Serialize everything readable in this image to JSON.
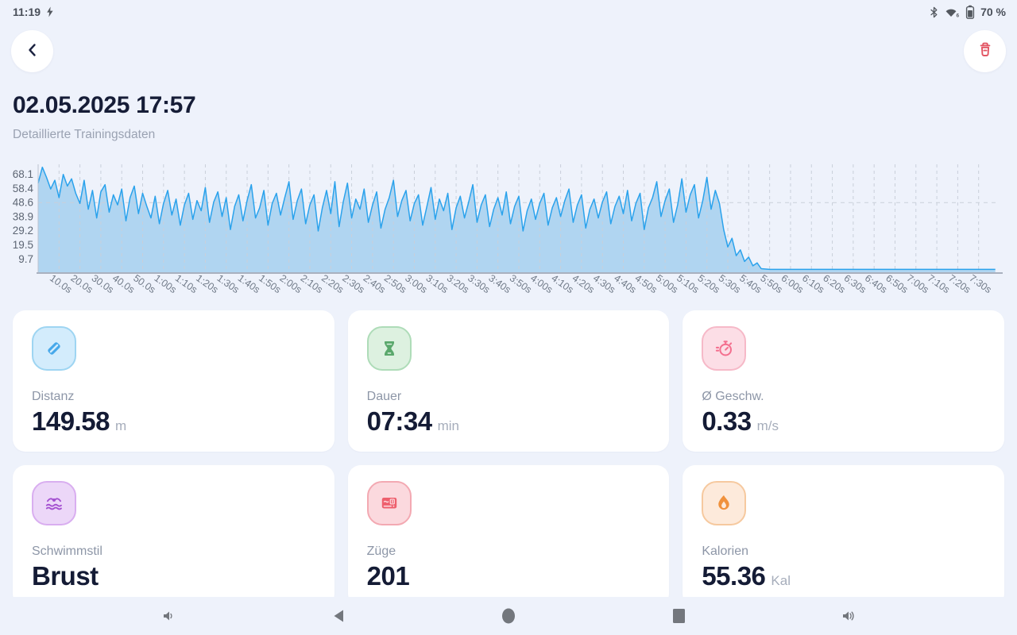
{
  "status_bar": {
    "time": "11:19",
    "battery": "70 %"
  },
  "header": {
    "title": "02.05.2025 17:57",
    "subtitle": "Detaillierte Trainingsdaten"
  },
  "chart_data": {
    "type": "area",
    "title": "",
    "xlabel": "time",
    "ylabel": "",
    "xlim": [
      0,
      460
    ],
    "ylim": [
      0,
      75
    ],
    "grid": true,
    "y_ticks": [
      9.7,
      19.5,
      29.2,
      38.9,
      48.6,
      58.4,
      68.1
    ],
    "horizontal_gridline_value": 48.6,
    "x_ticks_seconds": [
      10,
      20,
      30,
      40,
      50,
      60,
      70,
      80,
      90,
      100,
      110,
      120,
      130,
      140,
      150,
      160,
      170,
      180,
      190,
      200,
      210,
      220,
      230,
      240,
      250,
      260,
      270,
      280,
      290,
      300,
      310,
      320,
      330,
      340,
      350,
      360,
      370,
      380,
      390,
      400,
      410,
      420,
      430,
      440,
      450
    ],
    "x_tick_labels": [
      "10.0s",
      "20.0s",
      "30.0s",
      "40.0s",
      "50.0s",
      "1:00s",
      "1:10s",
      "1:20s",
      "1:30s",
      "1:40s",
      "1:50s",
      "2:00s",
      "2:10s",
      "2:20s",
      "2:30s",
      "2:40s",
      "2:50s",
      "3:00s",
      "3:10s",
      "3:20s",
      "3:30s",
      "3:40s",
      "3:50s",
      "4:00s",
      "4:10s",
      "4:20s",
      "4:30s",
      "4:40s",
      "4:50s",
      "5:00s",
      "5:10s",
      "5:20s",
      "5:30s",
      "5:40s",
      "5:50s",
      "6:00s",
      "6:10s",
      "6:20s",
      "6:30s",
      "6:40s",
      "6:50s",
      "7:00s",
      "7:10s",
      "7:20s",
      "7:30s"
    ],
    "line_color": "#2aa2ec",
    "fill_color": "#a9d2ef",
    "points": [
      [
        0,
        62
      ],
      [
        2,
        73
      ],
      [
        4,
        66
      ],
      [
        6,
        58
      ],
      [
        8,
        64
      ],
      [
        10,
        52
      ],
      [
        12,
        68
      ],
      [
        14,
        60
      ],
      [
        16,
        65
      ],
      [
        18,
        55
      ],
      [
        20,
        48
      ],
      [
        22,
        64
      ],
      [
        24,
        44
      ],
      [
        26,
        57
      ],
      [
        28,
        38
      ],
      [
        30,
        56
      ],
      [
        32,
        61
      ],
      [
        34,
        42
      ],
      [
        36,
        54
      ],
      [
        38,
        47
      ],
      [
        40,
        58
      ],
      [
        42,
        36
      ],
      [
        44,
        52
      ],
      [
        46,
        60
      ],
      [
        48,
        41
      ],
      [
        50,
        55
      ],
      [
        52,
        46
      ],
      [
        54,
        38
      ],
      [
        56,
        53
      ],
      [
        58,
        34
      ],
      [
        60,
        48
      ],
      [
        62,
        57
      ],
      [
        64,
        40
      ],
      [
        66,
        51
      ],
      [
        68,
        33
      ],
      [
        70,
        47
      ],
      [
        72,
        55
      ],
      [
        74,
        37
      ],
      [
        76,
        50
      ],
      [
        78,
        43
      ],
      [
        80,
        59
      ],
      [
        82,
        35
      ],
      [
        84,
        49
      ],
      [
        86,
        56
      ],
      [
        88,
        39
      ],
      [
        90,
        52
      ],
      [
        92,
        30
      ],
      [
        94,
        46
      ],
      [
        96,
        54
      ],
      [
        98,
        36
      ],
      [
        100,
        50
      ],
      [
        102,
        61
      ],
      [
        104,
        38
      ],
      [
        106,
        45
      ],
      [
        108,
        57
      ],
      [
        110,
        33
      ],
      [
        112,
        48
      ],
      [
        114,
        55
      ],
      [
        116,
        40
      ],
      [
        118,
        52
      ],
      [
        120,
        63
      ],
      [
        122,
        37
      ],
      [
        124,
        50
      ],
      [
        126,
        58
      ],
      [
        128,
        34
      ],
      [
        130,
        47
      ],
      [
        132,
        54
      ],
      [
        134,
        29
      ],
      [
        136,
        45
      ],
      [
        138,
        57
      ],
      [
        140,
        41
      ],
      [
        142,
        63
      ],
      [
        144,
        32
      ],
      [
        146,
        49
      ],
      [
        148,
        62
      ],
      [
        150,
        38
      ],
      [
        152,
        51
      ],
      [
        154,
        44
      ],
      [
        156,
        58
      ],
      [
        158,
        35
      ],
      [
        160,
        47
      ],
      [
        162,
        56
      ],
      [
        164,
        31
      ],
      [
        166,
        44
      ],
      [
        168,
        52
      ],
      [
        170,
        64
      ],
      [
        172,
        39
      ],
      [
        174,
        50
      ],
      [
        176,
        57
      ],
      [
        178,
        36
      ],
      [
        180,
        48
      ],
      [
        182,
        54
      ],
      [
        184,
        33
      ],
      [
        186,
        46
      ],
      [
        188,
        59
      ],
      [
        190,
        37
      ],
      [
        192,
        51
      ],
      [
        194,
        43
      ],
      [
        196,
        55
      ],
      [
        198,
        30
      ],
      [
        200,
        45
      ],
      [
        202,
        53
      ],
      [
        204,
        38
      ],
      [
        206,
        49
      ],
      [
        208,
        61
      ],
      [
        210,
        35
      ],
      [
        212,
        47
      ],
      [
        214,
        54
      ],
      [
        216,
        32
      ],
      [
        218,
        44
      ],
      [
        220,
        52
      ],
      [
        222,
        40
      ],
      [
        224,
        56
      ],
      [
        226,
        34
      ],
      [
        228,
        46
      ],
      [
        230,
        53
      ],
      [
        232,
        29
      ],
      [
        234,
        43
      ],
      [
        236,
        51
      ],
      [
        238,
        37
      ],
      [
        240,
        48
      ],
      [
        242,
        55
      ],
      [
        244,
        33
      ],
      [
        246,
        45
      ],
      [
        248,
        52
      ],
      [
        250,
        39
      ],
      [
        252,
        50
      ],
      [
        254,
        58
      ],
      [
        256,
        35
      ],
      [
        258,
        47
      ],
      [
        260,
        54
      ],
      [
        262,
        31
      ],
      [
        264,
        44
      ],
      [
        266,
        51
      ],
      [
        268,
        38
      ],
      [
        270,
        49
      ],
      [
        272,
        56
      ],
      [
        274,
        34
      ],
      [
        276,
        46
      ],
      [
        278,
        53
      ],
      [
        280,
        41
      ],
      [
        282,
        57
      ],
      [
        284,
        36
      ],
      [
        286,
        48
      ],
      [
        288,
        55
      ],
      [
        290,
        30
      ],
      [
        292,
        45
      ],
      [
        294,
        52
      ],
      [
        296,
        63
      ],
      [
        298,
        39
      ],
      [
        300,
        50
      ],
      [
        302,
        58
      ],
      [
        304,
        35
      ],
      [
        306,
        47
      ],
      [
        308,
        65
      ],
      [
        310,
        42
      ],
      [
        312,
        54
      ],
      [
        314,
        61
      ],
      [
        316,
        38
      ],
      [
        318,
        50
      ],
      [
        320,
        66
      ],
      [
        322,
        44
      ],
      [
        324,
        57
      ],
      [
        326,
        48
      ],
      [
        328,
        30
      ],
      [
        330,
        18
      ],
      [
        332,
        24
      ],
      [
        334,
        12
      ],
      [
        336,
        16
      ],
      [
        338,
        8
      ],
      [
        340,
        11
      ],
      [
        342,
        5
      ],
      [
        344,
        7
      ],
      [
        346,
        3
      ],
      [
        350,
        2.5
      ],
      [
        356,
        2.5
      ],
      [
        364,
        2.5
      ],
      [
        372,
        2.5
      ],
      [
        382,
        2.5
      ],
      [
        392,
        2.5
      ],
      [
        402,
        2.5
      ],
      [
        412,
        2.5
      ],
      [
        422,
        2.5
      ],
      [
        432,
        2.5
      ],
      [
        442,
        2.5
      ],
      [
        452,
        2.5
      ],
      [
        458,
        2.5
      ]
    ]
  },
  "cards": [
    {
      "label": "Distanz",
      "value": "149.58",
      "unit": "m",
      "icon": "distance-icon",
      "icon_bg": "#d3ecfc",
      "icon_border": "#9ed5f2",
      "icon_color": "#46a8ea"
    },
    {
      "label": "Dauer",
      "value": "07:34",
      "unit": "min",
      "icon": "duration-hourglass-icon",
      "icon_bg": "#ddf1e0",
      "icon_border": "#aedcb8",
      "icon_color": "#5aa86c"
    },
    {
      "label": "Ø Geschw.",
      "value": "0.33",
      "unit": "m/s",
      "icon": "speed-stopwatch-icon",
      "icon_bg": "#fcdee6",
      "icon_border": "#f6b9c8",
      "icon_color": "#f4708f"
    },
    {
      "label": "Schwimmstil",
      "value": "Brust",
      "unit": "",
      "icon": "swim-style-icon",
      "icon_bg": "#ecd7f8",
      "icon_border": "#d9aef0",
      "icon_color": "#a34fd0"
    },
    {
      "label": "Züge",
      "value": "201",
      "unit": "",
      "icon": "strokes-counter-icon",
      "icon_bg": "#fbd9de",
      "icon_border": "#f3a9b2",
      "icon_color": "#ee5f6d"
    },
    {
      "label": "Kalorien",
      "value": "55.36",
      "unit": "Kal",
      "icon": "calories-flame-icon",
      "icon_bg": "#fdeadb",
      "icon_border": "#f6c99f",
      "icon_color": "#f0913c"
    }
  ],
  "nav_bar": {
    "icons": [
      "volume-down",
      "back",
      "home",
      "recents",
      "volume-up"
    ]
  },
  "theme": {
    "background": "#eef2fb",
    "card_bg": "#ffffff",
    "accent_red": "#e25563",
    "text_dark": "#161d37",
    "text_gray": "#9aa2b2"
  }
}
